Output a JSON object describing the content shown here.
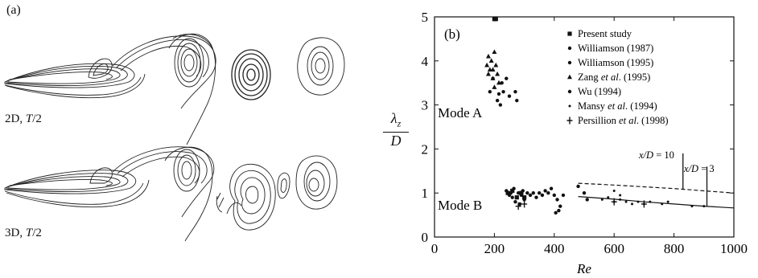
{
  "panel_a": {
    "label": "(a)",
    "rows": [
      {
        "prefix": "2D, ",
        "italic": "T",
        "suffix": "/2"
      },
      {
        "prefix": "3D, ",
        "italic": "T",
        "suffix": "/2"
      }
    ]
  },
  "chart_data": {
    "type": "scatter",
    "panel_label": "(b)",
    "xlabel": "Re",
    "ylabel": {
      "numerator": "λ",
      "subscript": "z",
      "denominator": "D"
    },
    "xlim": [
      0,
      1000
    ],
    "ylim": [
      0,
      5
    ],
    "xticks": [
      0,
      200,
      400,
      600,
      800,
      1000
    ],
    "yticks": [
      0,
      1,
      2,
      3,
      4,
      5
    ],
    "legend_position": "top-right",
    "legend": [
      {
        "marker": "square",
        "parts": [
          {
            "t": "Present study"
          }
        ]
      },
      {
        "marker": "dot",
        "parts": [
          {
            "t": "Williamson (1987)"
          }
        ]
      },
      {
        "marker": "dot",
        "parts": [
          {
            "t": "Williamson (1995)"
          }
        ]
      },
      {
        "marker": "triangle",
        "parts": [
          {
            "t": "Zang "
          },
          {
            "t": "et al",
            "i": true
          },
          {
            "t": ". (1995)"
          }
        ]
      },
      {
        "marker": "dot",
        "parts": [
          {
            "t": "Wu (1994)"
          }
        ]
      },
      {
        "marker": "small-dot",
        "parts": [
          {
            "t": "Mansy "
          },
          {
            "t": "et al",
            "i": true
          },
          {
            "t": ". (1994)"
          }
        ]
      },
      {
        "marker": "plus",
        "parts": [
          {
            "t": "Persillion "
          },
          {
            "t": "et al",
            "i": true
          },
          {
            "t": ". (1998)"
          }
        ]
      }
    ],
    "annotations": {
      "mode_a": "Mode A",
      "mode_b": "Mode B",
      "xd10": {
        "prefix": "",
        "italic": "x/D",
        "suffix": " = 10"
      },
      "xd3": {
        "prefix": "",
        "italic": "x/D",
        "suffix": " = 3"
      }
    },
    "series": [
      {
        "marker": "square",
        "points": [
          [
            200,
            4.95
          ],
          [
            205,
            4.95
          ]
        ]
      },
      {
        "marker": "triangle",
        "points": [
          [
            175,
            3.9
          ],
          [
            180,
            3.7
          ],
          [
            185,
            3.8
          ],
          [
            190,
            4.0
          ],
          [
            195,
            3.6
          ],
          [
            200,
            4.2
          ],
          [
            205,
            3.9
          ],
          [
            210,
            3.7
          ],
          [
            180,
            4.1
          ],
          [
            195,
            3.8
          ],
          [
            215,
            3.5
          ],
          [
            200,
            3.4
          ]
        ]
      },
      {
        "marker": "dot",
        "points": [
          [
            185,
            3.3
          ],
          [
            195,
            3.6
          ],
          [
            210,
            3.1
          ],
          [
            220,
            3.0
          ],
          [
            225,
            3.5
          ],
          [
            230,
            3.3
          ],
          [
            240,
            3.6
          ],
          [
            250,
            3.2
          ],
          [
            270,
            3.3
          ],
          [
            275,
            3.1
          ],
          [
            215,
            3.25
          ]
        ]
      },
      {
        "marker": "dot",
        "points": [
          [
            240,
            1.05
          ],
          [
            250,
            0.95
          ],
          [
            255,
            1.0
          ],
          [
            260,
            0.9
          ],
          [
            265,
            1.1
          ],
          [
            270,
            0.8
          ],
          [
            280,
            1.0
          ],
          [
            285,
            0.75
          ],
          [
            290,
            0.95
          ],
          [
            295,
            1.05
          ],
          [
            300,
            0.85
          ],
          [
            310,
            1.0
          ],
          [
            320,
            0.95
          ],
          [
            330,
            1.0
          ],
          [
            340,
            0.9
          ],
          [
            350,
            1.0
          ],
          [
            360,
            0.95
          ],
          [
            370,
            1.05
          ],
          [
            380,
            1.0
          ],
          [
            390,
            1.1
          ],
          [
            400,
            0.95
          ],
          [
            410,
            0.85
          ],
          [
            420,
            0.7
          ],
          [
            430,
            0.95
          ],
          [
            405,
            0.55
          ],
          [
            415,
            0.6
          ],
          [
            480,
            1.15
          ],
          [
            500,
            1.0
          ],
          [
            510,
            0.85
          ]
        ]
      },
      {
        "marker": "square",
        "points": [
          [
            245,
            1.0
          ],
          [
            260,
            1.05
          ],
          [
            275,
            0.9
          ],
          [
            290,
            1.0
          ],
          [
            300,
            0.9
          ]
        ]
      },
      {
        "marker": "small-dot",
        "points": [
          [
            560,
            0.85
          ],
          [
            580,
            0.9
          ],
          [
            600,
            0.8
          ],
          [
            620,
            0.85
          ],
          [
            640,
            0.8
          ],
          [
            660,
            0.75
          ],
          [
            680,
            0.8
          ],
          [
            700,
            0.75
          ],
          [
            720,
            0.8
          ],
          [
            760,
            0.75
          ],
          [
            780,
            0.8
          ],
          [
            860,
            0.7
          ],
          [
            900,
            0.7
          ],
          [
            600,
            1.05
          ],
          [
            620,
            0.95
          ]
        ]
      },
      {
        "marker": "plus",
        "points": [
          [
            280,
            0.7
          ],
          [
            300,
            0.75
          ],
          [
            600,
            0.8
          ],
          [
            700,
            0.75
          ]
        ]
      }
    ],
    "lines": [
      {
        "style": "dashed",
        "points": [
          [
            480,
            1.22
          ],
          [
            600,
            1.18
          ],
          [
            700,
            1.14
          ],
          [
            800,
            1.1
          ],
          [
            900,
            1.05
          ],
          [
            1000,
            1.0
          ]
        ]
      },
      {
        "style": "solid",
        "points": [
          [
            480,
            0.92
          ],
          [
            600,
            0.86
          ],
          [
            700,
            0.8
          ],
          [
            800,
            0.75
          ],
          [
            900,
            0.7
          ],
          [
            1000,
            0.66
          ]
        ]
      }
    ]
  }
}
